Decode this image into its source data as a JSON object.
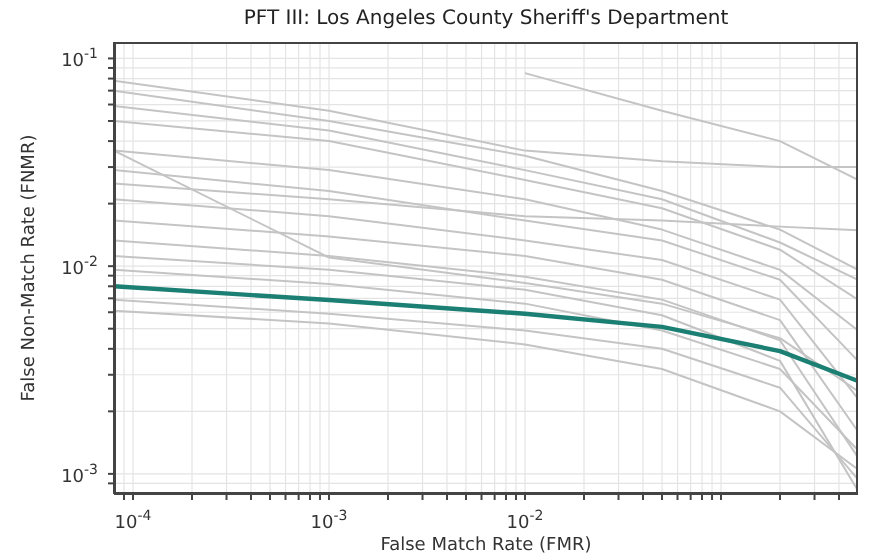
{
  "chart_data": {
    "type": "line",
    "title": "PFT III: Los Angeles County Sheriff's Department",
    "xlabel": "False Match Rate (FMR)",
    "ylabel": "False Non-Match Rate (FNMR)",
    "log": "xy",
    "grid": true,
    "marker": "none",
    "line_style": "solid",
    "xlim": [
      8e-05,
      0.5
    ],
    "ylim": [
      0.0008,
      0.12
    ],
    "xticks": [
      {
        "value": 9e-05,
        "label": null
      },
      {
        "value": 0.0001,
        "label": "10$^{-4}$"
      },
      {
        "value": 0.0002,
        "label": null
      },
      {
        "value": 0.0003,
        "label": null
      },
      {
        "value": 0.0004,
        "label": null
      },
      {
        "value": 0.0005,
        "label": null
      },
      {
        "value": 0.0006,
        "label": null
      },
      {
        "value": 0.0007,
        "label": null
      },
      {
        "value": 0.0008,
        "label": null
      },
      {
        "value": 0.0009,
        "label": null
      },
      {
        "value": 0.001,
        "label": "10$^{-3}$"
      },
      {
        "value": 0.002,
        "label": null
      },
      {
        "value": 0.003,
        "label": null
      },
      {
        "value": 0.004,
        "label": null
      },
      {
        "value": 0.005,
        "label": null
      },
      {
        "value": 0.006,
        "label": null
      },
      {
        "value": 0.007,
        "label": null
      },
      {
        "value": 0.008,
        "label": null
      },
      {
        "value": 0.009,
        "label": null
      },
      {
        "value": 0.01,
        "label": "10$^{-2}$"
      },
      {
        "value": 0.02,
        "label": null
      },
      {
        "value": 0.03,
        "label": null
      },
      {
        "value": 0.04,
        "label": null
      },
      {
        "value": 0.05,
        "label": null
      },
      {
        "value": 0.06,
        "label": null
      },
      {
        "value": 0.07,
        "label": null
      },
      {
        "value": 0.08,
        "label": null
      },
      {
        "value": 0.09,
        "label": null
      },
      {
        "value": 0.1,
        "label": null
      },
      {
        "value": 0.2,
        "label": null
      },
      {
        "value": 0.3,
        "label": null
      },
      {
        "value": 0.4,
        "label": null
      }
    ],
    "yticks": [
      {
        "value": 0.0009,
        "label": null
      },
      {
        "value": 0.001,
        "label": "10$^{-3}$"
      },
      {
        "value": 0.002,
        "label": null
      },
      {
        "value": 0.003,
        "label": null
      },
      {
        "value": 0.004,
        "label": null
      },
      {
        "value": 0.005,
        "label": null
      },
      {
        "value": 0.006,
        "label": null
      },
      {
        "value": 0.007,
        "label": null
      },
      {
        "value": 0.008,
        "label": null
      },
      {
        "value": 0.009,
        "label": null
      },
      {
        "value": 0.01,
        "label": "10$^{-2}$"
      },
      {
        "value": 0.02,
        "label": null
      },
      {
        "value": 0.03,
        "label": null
      },
      {
        "value": 0.04,
        "label": null
      },
      {
        "value": 0.05,
        "label": null
      },
      {
        "value": 0.06,
        "label": null
      },
      {
        "value": 0.07,
        "label": null
      },
      {
        "value": 0.08,
        "label": null
      },
      {
        "value": 0.09,
        "label": null
      },
      {
        "value": 0.1,
        "label": "10$^{-1}$"
      }
    ],
    "x": [
      8e-05,
      0.001,
      0.01,
      0.05,
      0.2,
      0.5
    ],
    "series": [
      {
        "color": "#c4c4c4",
        "values": [
          null,
          null,
          0.085,
          0.056,
          0.04,
          0.026
        ]
      },
      {
        "color": "#c4c4c4",
        "values": [
          0.078,
          0.056,
          0.036,
          0.032,
          0.03,
          0.03
        ]
      },
      {
        "color": "#c4c4c4",
        "values": [
          0.07,
          0.05,
          0.034,
          0.023,
          0.015,
          0.0096
        ]
      },
      {
        "color": "#c4c4c4",
        "values": [
          0.059,
          0.045,
          0.029,
          0.021,
          0.013,
          0.0086
        ]
      },
      {
        "color": "#c4c4c4",
        "values": [
          0.05,
          0.04,
          0.026,
          0.019,
          0.012,
          0.0069
        ]
      },
      {
        "color": "#c4c4c4",
        "values": [
          0.036,
          0.029,
          0.021,
          0.015,
          0.0096,
          0.0049
        ]
      },
      {
        "color": "#c4c4c4",
        "values": [
          0.036,
          0.011,
          0.0083,
          0.0066,
          0.0045,
          0.0025
        ]
      },
      {
        "color": "#c4c4c4",
        "values": [
          0.029,
          0.023,
          0.0166,
          0.0133,
          0.0086,
          0.0035
        ]
      },
      {
        "color": "#c4c4c4",
        "values": [
          0.025,
          0.021,
          0.0174,
          0.0166,
          0.0155,
          0.0149
        ]
      },
      {
        "color": "#c4c4c4",
        "values": [
          0.021,
          0.0174,
          0.0133,
          0.0107,
          0.0069,
          0.0023
        ]
      },
      {
        "color": "#c4c4c4",
        "values": [
          0.0166,
          0.0139,
          0.0112,
          0.0086,
          0.0055,
          0.0016
        ]
      },
      {
        "color": "#c4c4c4",
        "values": [
          0.0133,
          0.0112,
          0.0089,
          0.0069,
          0.0044,
          0.0012
        ]
      },
      {
        "color": "#c4c4c4",
        "values": [
          0.0112,
          0.0096,
          0.0077,
          0.0058,
          0.0035,
          0.00083
        ]
      },
      {
        "color": "#c4c4c4",
        "values": [
          0.0096,
          0.0082,
          0.0066,
          0.0049,
          0.0032,
          0.0013
        ]
      },
      {
        "color": "#c4c4c4",
        "values": [
          0.0069,
          0.0059,
          0.0049,
          0.004,
          0.0026,
          0.00094
        ]
      },
      {
        "color": "#c4c4c4",
        "values": [
          0.0061,
          0.0053,
          0.0042,
          0.0032,
          0.002,
          0.00105
        ]
      },
      {
        "color": "#1b7f74",
        "values": [
          0.008,
          0.00687,
          0.0059,
          0.0051,
          0.0039,
          0.0028
        ]
      }
    ]
  }
}
